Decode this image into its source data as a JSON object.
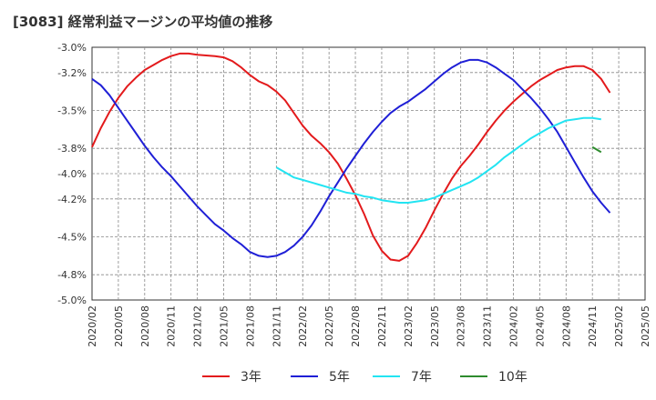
{
  "title": "[3083]  経常利益マージンの平均値の推移",
  "chart_data": {
    "type": "line",
    "title": "[3083]  経常利益マージンの平均値の推移",
    "xlabel": "",
    "ylabel": "",
    "ylim": [
      -5.0,
      -3.0
    ],
    "y_ticks": [
      -3.0,
      -3.2,
      -3.5,
      -3.8,
      -4.0,
      -4.2,
      -4.5,
      -4.8,
      -5.0
    ],
    "y_tick_labels": [
      "-3.0%",
      "-3.2%",
      "-3.5%",
      "-3.8%",
      "-4.0%",
      "-4.2%",
      "-4.5%",
      "-4.8%",
      "-5.0%"
    ],
    "x_tick_labels": [
      "2020/02",
      "2020/05",
      "2020/08",
      "2020/11",
      "2021/02",
      "2021/05",
      "2021/08",
      "2021/11",
      "2022/02",
      "2022/05",
      "2022/08",
      "2022/11",
      "2023/02",
      "2023/05",
      "2023/08",
      "2023/11",
      "2024/02",
      "2024/05",
      "2024/08",
      "2024/11",
      "2025/02",
      "2025/05"
    ],
    "x_start": "2020/02",
    "grid": true,
    "legend_position": "bottom",
    "series": [
      {
        "name": "3年",
        "color": "#e31a1c",
        "start": "2020/02",
        "values": [
          -3.79,
          -3.64,
          -3.51,
          -3.4,
          -3.31,
          -3.24,
          -3.18,
          -3.14,
          -3.1,
          -3.07,
          -3.05,
          -3.05,
          -3.06,
          -3.065,
          -3.07,
          -3.08,
          -3.11,
          -3.16,
          -3.22,
          -3.27,
          -3.3,
          -3.35,
          -3.42,
          -3.52,
          -3.62,
          -3.7,
          -3.76,
          -3.83,
          -3.92,
          -4.04,
          -4.17,
          -4.32,
          -4.49,
          -4.61,
          -4.68,
          -4.69,
          -4.65,
          -4.55,
          -4.43,
          -4.29,
          -4.16,
          -4.04,
          -3.94,
          -3.86,
          -3.77,
          -3.67,
          -3.58,
          -3.5,
          -3.43,
          -3.37,
          -3.31,
          -3.26,
          -3.22,
          -3.18,
          -3.16,
          -3.15,
          -3.15,
          -3.18,
          -3.25,
          -3.36
        ]
      },
      {
        "name": "5年",
        "color": "#1f1fd6",
        "start": "2020/02",
        "values": [
          -3.25,
          -3.3,
          -3.38,
          -3.48,
          -3.58,
          -3.68,
          -3.78,
          -3.87,
          -3.95,
          -4.02,
          -4.1,
          -4.18,
          -4.26,
          -4.33,
          -4.4,
          -4.45,
          -4.51,
          -4.56,
          -4.62,
          -4.65,
          -4.66,
          -4.65,
          -4.62,
          -4.57,
          -4.5,
          -4.41,
          -4.3,
          -4.18,
          -4.07,
          -3.96,
          -3.86,
          -3.76,
          -3.67,
          -3.59,
          -3.52,
          -3.47,
          -3.43,
          -3.38,
          -3.33,
          -3.27,
          -3.21,
          -3.16,
          -3.12,
          -3.1,
          -3.1,
          -3.12,
          -3.16,
          -3.21,
          -3.26,
          -3.33,
          -3.4,
          -3.48,
          -3.57,
          -3.67,
          -3.79,
          -3.91,
          -4.03,
          -4.14,
          -4.23,
          -4.31
        ]
      },
      {
        "name": "7年",
        "color": "#22e4f2",
        "start": "2021/11",
        "values": [
          -3.95,
          -3.99,
          -4.03,
          -4.05,
          -4.07,
          -4.09,
          -4.11,
          -4.13,
          -4.15,
          -4.16,
          -4.18,
          -4.19,
          -4.21,
          -4.22,
          -4.23,
          -4.23,
          -4.22,
          -4.21,
          -4.19,
          -4.16,
          -4.13,
          -4.1,
          -4.07,
          -4.03,
          -3.98,
          -3.93,
          -3.87,
          -3.82,
          -3.77,
          -3.72,
          -3.68,
          -3.64,
          -3.61,
          -3.58,
          -3.57,
          -3.56,
          -3.56,
          -3.57
        ]
      },
      {
        "name": "10年",
        "color": "#2e8b2e",
        "start": "2024/11",
        "values": [
          -3.79,
          -3.83
        ]
      }
    ]
  }
}
